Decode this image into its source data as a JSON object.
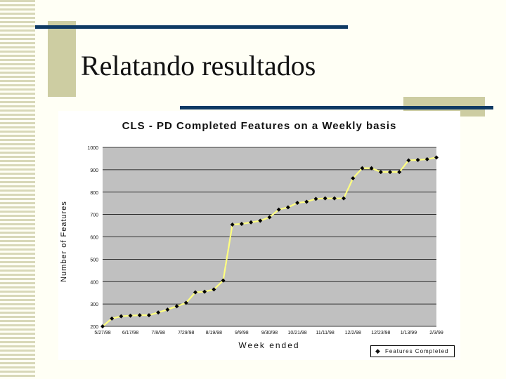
{
  "slide": {
    "title": "Relatando resultados"
  },
  "chart_data": {
    "type": "line",
    "title": "CLS - PD Completed Features on a Weekly basis",
    "xlabel": "Week ended",
    "ylabel": "Number of Features",
    "ylim": [
      200,
      1000
    ],
    "yticks": [
      200,
      300,
      400,
      500,
      600,
      700,
      800,
      900,
      1000
    ],
    "ytick_labels": [
      "200",
      "300",
      "400",
      "500",
      "600",
      "700",
      "800",
      "900",
      "1000"
    ],
    "xtick_labels": [
      "5/27/98",
      "6/17/98",
      "7/8/98",
      "7/29/98",
      "8/19/98",
      "9/9/98",
      "9/30/98",
      "10/21/98",
      "11/11/98",
      "12/2/98",
      "12/23/98",
      "1/13/99",
      "2/3/99"
    ],
    "x": [
      "5/27/98",
      "6/3/98",
      "6/10/98",
      "6/17/98",
      "6/24/98",
      "7/1/98",
      "7/8/98",
      "7/15/98",
      "7/22/98",
      "7/29/98",
      "8/5/98",
      "8/12/98",
      "8/19/98",
      "8/26/98",
      "9/2/98",
      "9/9/98",
      "9/16/98",
      "9/23/98",
      "9/30/98",
      "10/7/98",
      "10/14/98",
      "10/21/98",
      "10/28/98",
      "11/4/98",
      "11/11/98",
      "11/18/98",
      "11/25/98",
      "12/2/98",
      "12/9/98",
      "12/16/98",
      "12/23/98",
      "12/30/98",
      "1/6/99",
      "1/13/99",
      "1/20/99",
      "1/27/99",
      "2/3/99"
    ],
    "series": [
      {
        "name": "Features Completed",
        "values": [
          200,
          235,
          245,
          248,
          250,
          250,
          262,
          275,
          290,
          305,
          352,
          355,
          365,
          405,
          655,
          658,
          665,
          672,
          688,
          722,
          732,
          752,
          757,
          770,
          772,
          772,
          772,
          862,
          907,
          907,
          890,
          890,
          890,
          942,
          944,
          947,
          955
        ]
      }
    ],
    "grid": true,
    "plot_background": "#c0c0c0",
    "line_color": "#ffff80",
    "marker_color": "#000000",
    "legend_position": "bottom-right"
  }
}
